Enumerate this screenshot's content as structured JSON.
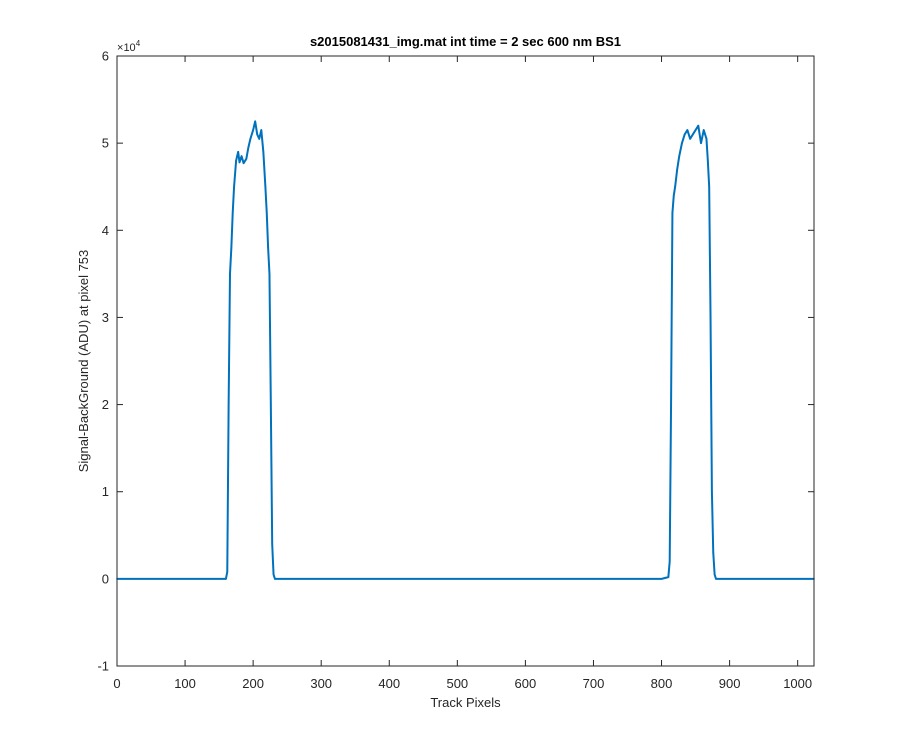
{
  "chart_data": {
    "type": "line",
    "title": "s2015081431_img.mat int time = 2 sec  600 nm BS1",
    "xlabel": "Track Pixels",
    "ylabel": "Signal-BackGround (ADU) at pixel 753",
    "xlim": [
      0,
      1024
    ],
    "ylim": [
      -10000,
      60000
    ],
    "xticks": [
      0,
      100,
      200,
      300,
      400,
      500,
      600,
      700,
      800,
      900,
      1000
    ],
    "yticks": [
      -1,
      0,
      1,
      2,
      3,
      4,
      5,
      6
    ],
    "y_exponent": {
      "base": "10",
      "power": "4",
      "multiplier_symbol": "×"
    },
    "grid": false,
    "box": true,
    "series": [
      {
        "color": "#0072bd",
        "x": [
          0,
          100,
          160,
          162,
          164,
          166,
          168,
          170,
          172,
          175,
          178,
          180,
          183,
          186,
          190,
          193,
          196,
          200,
          203,
          206,
          209,
          212,
          215,
          218,
          220,
          222,
          224,
          226,
          228,
          230,
          232,
          240,
          300,
          400,
          500,
          600,
          700,
          800,
          810,
          812,
          814,
          816,
          818,
          820,
          823,
          826,
          830,
          834,
          838,
          842,
          846,
          850,
          854,
          858,
          862,
          866,
          868,
          870,
          872,
          874,
          876,
          878,
          880,
          890,
          1000,
          1024
        ],
        "y": [
          0,
          0,
          0,
          800,
          20000,
          35000,
          38000,
          42000,
          45000,
          48000,
          49000,
          47800,
          48500,
          47700,
          48200,
          49500,
          50500,
          51500,
          52500,
          51000,
          50500,
          51500,
          49000,
          45000,
          42000,
          38000,
          35000,
          20000,
          4000,
          500,
          0,
          0,
          0,
          0,
          0,
          0,
          0,
          0,
          200,
          2000,
          20000,
          42000,
          44000,
          45000,
          47000,
          48500,
          50000,
          51000,
          51500,
          50500,
          51000,
          51500,
          52000,
          50000,
          51500,
          50500,
          48000,
          45000,
          30000,
          10000,
          3000,
          500,
          0,
          0,
          0,
          0
        ]
      }
    ]
  }
}
